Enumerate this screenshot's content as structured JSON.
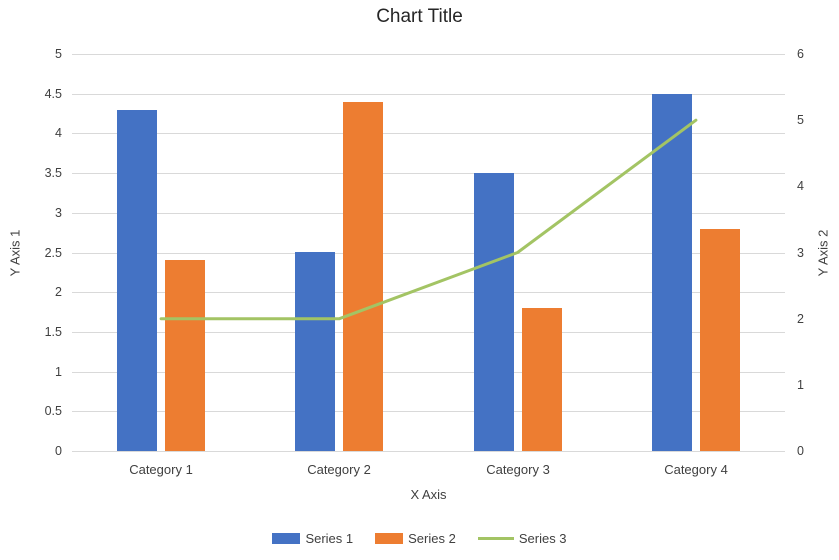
{
  "chart_data": {
    "type": "bar",
    "subtype": "combo-bar-line-dual-axis",
    "title": "Chart Title",
    "xlabel": "X Axis",
    "categories": [
      "Category 1",
      "Category 2",
      "Category 3",
      "Category 4"
    ],
    "series": [
      {
        "name": "Series 1",
        "mark": "bar",
        "axis": "left",
        "color": "#4472C4",
        "values": [
          4.3,
          2.5,
          3.5,
          4.5
        ]
      },
      {
        "name": "Series 2",
        "mark": "bar",
        "axis": "left",
        "color": "#ED7D31",
        "values": [
          2.4,
          4.4,
          1.8,
          2.8
        ]
      },
      {
        "name": "Series 3",
        "mark": "line",
        "axis": "right",
        "color": "#A3C464",
        "values": [
          2,
          2,
          3,
          5
        ]
      }
    ],
    "left_axis": {
      "label": "Y Axis 1",
      "min": 0,
      "max": 5,
      "step": 0.5,
      "ticks": [
        "0",
        "0.5",
        "1",
        "1.5",
        "2",
        "2.5",
        "3",
        "3.5",
        "4",
        "4.5",
        "5"
      ]
    },
    "right_axis": {
      "label": "Y Axis 2",
      "min": 0,
      "max": 6,
      "step": 1,
      "ticks": [
        "0",
        "1",
        "2",
        "3",
        "4",
        "5",
        "6"
      ]
    },
    "grid": true,
    "gridline_color": "#D9D9D9",
    "legend_position": "bottom",
    "background_color": "#FFFFFF",
    "text_color": "#404040",
    "title_color": "#262626"
  }
}
